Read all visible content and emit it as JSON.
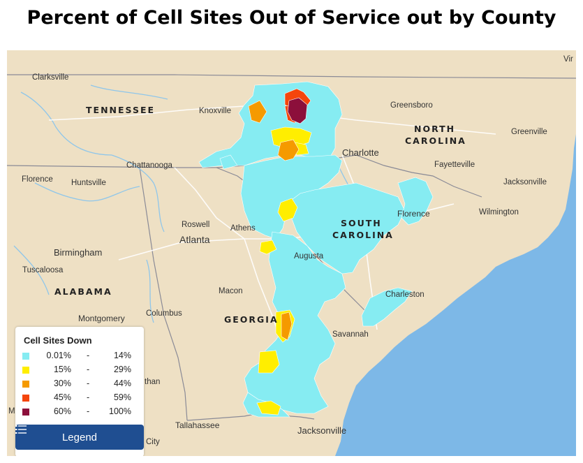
{
  "title": "Percent of Cell Sites Out of Service out by County",
  "colors": {
    "land": "#eee0c4",
    "water": "#7db8e7",
    "bin1": "#86ecf2",
    "bin2": "#ffee00",
    "bin3": "#f59a00",
    "bin4": "#f4450c",
    "bin5": "#8c0f3b",
    "legend_button": "#1f4e91"
  },
  "map": {
    "state_labels": [
      {
        "id": "tennessee",
        "text": "TENNESSEE"
      },
      {
        "id": "north-carolina-1",
        "text": "NORTH"
      },
      {
        "id": "north-carolina-2",
        "text": "CAROLINA"
      },
      {
        "id": "south-carolina-1",
        "text": "SOUTH"
      },
      {
        "id": "south-carolina-2",
        "text": "CAROLINA"
      },
      {
        "id": "alabama",
        "text": "ALABAMA"
      },
      {
        "id": "georgia",
        "text": "GEORGIA"
      }
    ],
    "city_labels": [
      {
        "id": "clarksville",
        "text": "Clarksville"
      },
      {
        "id": "knoxville",
        "text": "Knoxville"
      },
      {
        "id": "greensboro",
        "text": "Greensboro"
      },
      {
        "id": "greenville",
        "text": "Greenville"
      },
      {
        "id": "charlotte",
        "text": "Charlotte"
      },
      {
        "id": "chattanooga",
        "text": "Chattanooga"
      },
      {
        "id": "fayetteville",
        "text": "Fayetteville"
      },
      {
        "id": "florence-al",
        "text": "Florence"
      },
      {
        "id": "huntsville",
        "text": "Huntsville"
      },
      {
        "id": "jacksonville-nc",
        "text": "Jacksonville"
      },
      {
        "id": "wilmington",
        "text": "Wilmington"
      },
      {
        "id": "florence-sc",
        "text": "Florence"
      },
      {
        "id": "roswell",
        "text": "Roswell"
      },
      {
        "id": "athens",
        "text": "Athens"
      },
      {
        "id": "atlanta",
        "text": "Atlanta"
      },
      {
        "id": "birmingham",
        "text": "Birmingham"
      },
      {
        "id": "augusta",
        "text": "Augusta"
      },
      {
        "id": "tuscaloosa",
        "text": "Tuscaloosa"
      },
      {
        "id": "macon",
        "text": "Macon"
      },
      {
        "id": "charleston",
        "text": "Charleston"
      },
      {
        "id": "columbus",
        "text": "Columbus"
      },
      {
        "id": "montgomery",
        "text": "Montgomery"
      },
      {
        "id": "savannah",
        "text": "Savannah"
      },
      {
        "id": "tallahassee",
        "text": "Tallahassee"
      },
      {
        "id": "jacksonville-fl",
        "text": "Jacksonville"
      },
      {
        "id": "virginia-partial",
        "text": "Vir"
      },
      {
        "id": "dothan-partial",
        "text": "than"
      },
      {
        "id": "city-partial",
        "text": "City"
      },
      {
        "id": "m-partial",
        "text": "M"
      }
    ]
  },
  "legend": {
    "title": "Cell Sites Down",
    "rows": [
      {
        "low": "0.01%",
        "sep": "-",
        "high": "14%",
        "color": "#86ecf2"
      },
      {
        "low": "15%",
        "sep": "-",
        "high": "29%",
        "color": "#ffee00"
      },
      {
        "low": "30%",
        "sep": "-",
        "high": "44%",
        "color": "#f59a00"
      },
      {
        "low": "45%",
        "sep": "-",
        "high": "59%",
        "color": "#f4450c"
      },
      {
        "low": "60%",
        "sep": "-",
        "high": "100%",
        "color": "#8c0f3b"
      }
    ],
    "button_label": "Legend"
  }
}
